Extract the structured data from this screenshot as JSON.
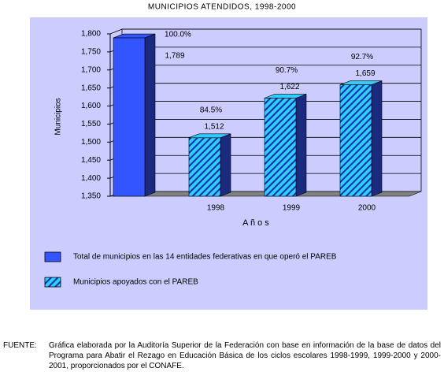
{
  "chart_data": {
    "type": "bar3d",
    "title": "MUNICIPIOS ATENDIDOS, 1998-2000",
    "y_label": "Municipios",
    "x_label": "A ñ o s",
    "categories": [
      null,
      "1998",
      "1999",
      "2000"
    ],
    "series": [
      {
        "name": "Total de municipios en las 14 entidades federativas en que operó el PAREB",
        "color": "#3355ff",
        "pattern": "solid",
        "values": [
          1789,
          null,
          null,
          null
        ],
        "value_labels": [
          "1,789",
          null,
          null,
          null
        ]
      },
      {
        "name": "Municipios apoyados con el PAREB",
        "color": "#33ccff",
        "pattern": "hatch",
        "values": [
          null,
          1512,
          1622,
          1659
        ],
        "value_labels": [
          null,
          "1,512",
          "1,622",
          "1,659"
        ]
      }
    ],
    "percent_labels": [
      "100.0%",
      "84.5%",
      "90.7%",
      "92.7%"
    ],
    "ylim": [
      1350,
      1800
    ],
    "yticks": [
      {
        "value": 1350,
        "label": "1,350"
      },
      {
        "value": 1400,
        "label": "1,400"
      },
      {
        "value": 1450,
        "label": "1,450"
      },
      {
        "value": 1500,
        "label": "1,500"
      },
      {
        "value": 1550,
        "label": "1,550"
      },
      {
        "value": 1600,
        "label": "1,600"
      },
      {
        "value": 1650,
        "label": "1,650"
      },
      {
        "value": 1700,
        "label": "1,700"
      },
      {
        "value": 1750,
        "label": "1,750"
      },
      {
        "value": 1800,
        "label": "1,800"
      }
    ],
    "grid": true
  },
  "footnote": {
    "label": "FUENTE:",
    "text": "Gráfica elaborada por la Auditoría Superior de la Federación con base en información de la base de datos del Programa para Abatir el Rezago en Educación Básica de los ciclos escolares 1998-1999, 1999-2000 y 2000-2001, proporcionados por el CONAFE."
  }
}
